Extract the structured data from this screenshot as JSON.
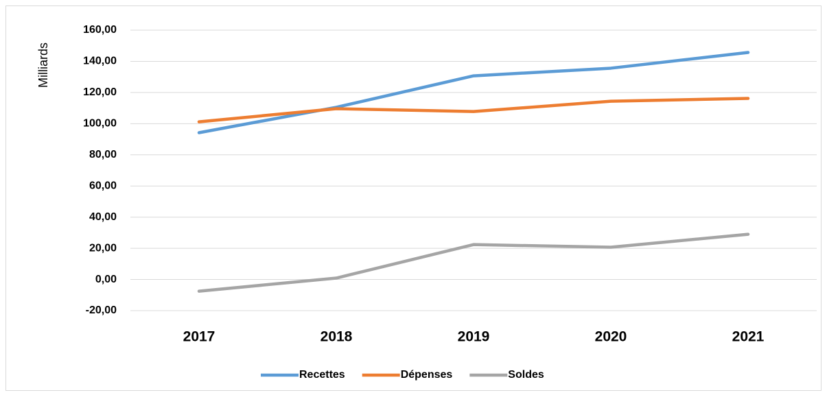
{
  "chart_data": {
    "type": "line",
    "y_label": "Milliards",
    "categories": [
      "2017",
      "2018",
      "2019",
      "2020",
      "2021"
    ],
    "series": [
      {
        "name": "Recettes",
        "color": "#5b9bd5",
        "values": [
          94.2,
          110.5,
          130.7,
          135.6,
          145.7
        ]
      },
      {
        "name": "Dépenses",
        "color": "#ed7d31",
        "values": [
          101.2,
          109.6,
          107.8,
          114.4,
          116.2
        ]
      },
      {
        "name": "Soldes",
        "color": "#a5a5a5",
        "values": [
          -7.5,
          0.9,
          22.4,
          20.7,
          29.0
        ]
      }
    ],
    "ylim": [
      -20,
      160
    ],
    "yticks": [
      {
        "value": -20,
        "label": "-20,00"
      },
      {
        "value": 0,
        "label": "0,00"
      },
      {
        "value": 20,
        "label": "20,00"
      },
      {
        "value": 40,
        "label": "40,00"
      },
      {
        "value": 60,
        "label": "60,00"
      },
      {
        "value": 80,
        "label": "80,00"
      },
      {
        "value": 100,
        "label": "100,00"
      },
      {
        "value": 120,
        "label": "120,00"
      },
      {
        "value": 140,
        "label": "140,00"
      },
      {
        "value": 160,
        "label": "160,00"
      }
    ],
    "grid": true,
    "legend": "bottom"
  }
}
